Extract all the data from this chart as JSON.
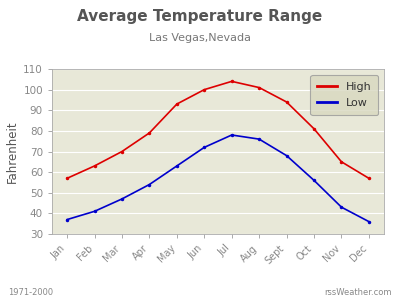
{
  "title": "Average Temperature Range",
  "subtitle": "Las Vegas,Nevada",
  "ylabel": "Fahrenheit",
  "footnote_left": "1971-2000",
  "footnote_right": "rssWeather.com",
  "months": [
    "Jan",
    "Feb",
    "Mar",
    "Apr",
    "May",
    "Jun",
    "Jul",
    "Aug",
    "Sept",
    "Oct",
    "Nov",
    "Dec"
  ],
  "high": [
    57,
    63,
    70,
    79,
    93,
    100,
    104,
    101,
    94,
    81,
    65,
    57
  ],
  "low": [
    37,
    41,
    47,
    54,
    63,
    72,
    78,
    76,
    68,
    56,
    43,
    36
  ],
  "ylim": [
    30,
    110
  ],
  "yticks": [
    30,
    40,
    50,
    60,
    70,
    80,
    90,
    100,
    110
  ],
  "high_color": "#dd0000",
  "low_color": "#0000cc",
  "plot_bg": "#e8e8d8",
  "fig_bg": "#ffffff",
  "border_color": "#aaaaaa",
  "legend_bg": "#d8d8c0",
  "title_color": "#555555",
  "subtitle_color": "#777777",
  "tick_color": "#888888",
  "footnote_color": "#888888",
  "grid_color": "#ffffff"
}
